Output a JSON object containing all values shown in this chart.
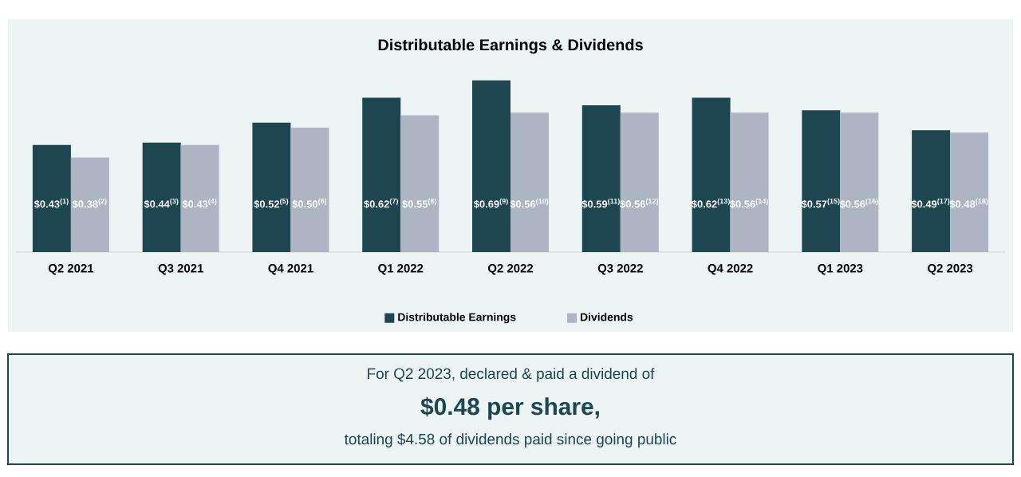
{
  "chart_data": {
    "type": "bar",
    "title": "Distributable Earnings & Dividends",
    "categories": [
      "Q2 2021",
      "Q3 2021",
      "Q4 2021",
      "Q1 2022",
      "Q2 2022",
      "Q3 2022",
      "Q4 2022",
      "Q1 2023",
      "Q2 2023"
    ],
    "series": [
      {
        "name": "Distributable Earnings",
        "color": "#1d4651",
        "values": [
          0.43,
          0.44,
          0.52,
          0.62,
          0.69,
          0.59,
          0.62,
          0.57,
          0.49
        ],
        "value_labels": [
          "$0.43$^{(1)}$",
          "$0.44$^{(3)}$",
          "$0.52$^{(5)}$",
          "$0.62$^{(7)}$",
          "$0.69$^{(9)}$",
          "$0.59$^{(11)}$",
          "$0.62$^{(13)}$",
          "$0.57$^{(15)}$",
          "$0.49$^{(17)}$"
        ]
      },
      {
        "name": "Dividends",
        "color": "#adb5c4",
        "values": [
          0.38,
          0.43,
          0.5,
          0.55,
          0.56,
          0.56,
          0.56,
          0.56,
          0.48
        ],
        "value_labels": [
          "$0.38$^{(2)}$",
          "$0.43$^{(4)}$",
          "$0.50$^{(6)}$",
          "$0.55$^{(8)}$",
          "$0.56$^{(10)}$",
          "$0.56$^{(12)}$",
          "$0.56$^{(14)}$",
          "$0.56$^{(16)}$",
          "$0.48$^{(18)}$"
        ]
      }
    ],
    "legend": "bottom",
    "annotations": [
      "For Q2 2023, declared & paid a dividend of",
      "**$0.48 per share,**",
      "totaling $4.58 of dividends paid since going public"
    ]
  }
}
